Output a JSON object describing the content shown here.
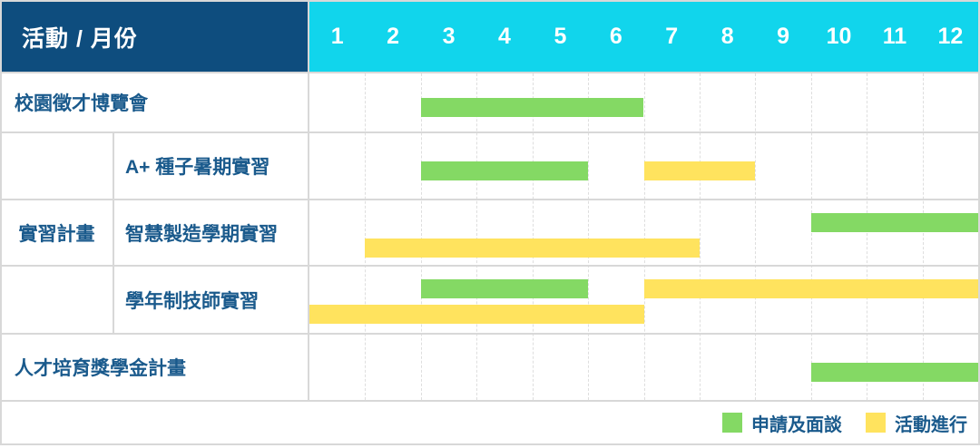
{
  "table": {
    "corner_label": "活動 / 月份",
    "months": [
      "1",
      "2",
      "3",
      "4",
      "5",
      "6",
      "7",
      "8",
      "9",
      "10",
      "11",
      "12"
    ],
    "group_label": "實習計畫",
    "rows": [
      {
        "label": "校園徵才博覽會"
      },
      {
        "label": "A+ 種子暑期實習"
      },
      {
        "label": "智慧製造學期實習"
      },
      {
        "label": "學年制技師實習"
      },
      {
        "label": "人才培育獎學金計畫"
      }
    ]
  },
  "legend": {
    "items": [
      {
        "key": "apply",
        "label": "申請及面談",
        "color": "#84d964"
      },
      {
        "key": "progress",
        "label": "活動進行",
        "color": "#ffe35e"
      }
    ]
  },
  "colors": {
    "header_blue": "#0e4d7e",
    "month_cyan": "#11d5ec",
    "apply_green": "#84d964",
    "progress_yellow": "#ffe35e",
    "label_text": "#1a5a8c",
    "grid_border": "#d8d8d8"
  },
  "chart_data": {
    "type": "gantt",
    "title": "活動 / 月份",
    "x_unit": "month",
    "x_range": [
      1,
      12
    ],
    "x_ticks": [
      "1",
      "2",
      "3",
      "4",
      "5",
      "6",
      "7",
      "8",
      "9",
      "10",
      "11",
      "12"
    ],
    "categories": [
      "校園徵才博覽會",
      "A+ 種子暑期實習",
      "智慧製造學期實習",
      "學年制技師實習",
      "人才培育獎學金計畫"
    ],
    "category_group": {
      "label": "實習計畫",
      "members": [
        "A+ 種子暑期實習",
        "智慧製造學期實習",
        "學年制技師實習"
      ]
    },
    "phases": {
      "apply": "申請及面談",
      "progress": "活動進行"
    },
    "legend_position": "bottom-right",
    "bars": [
      {
        "row": 0,
        "category": "校園徵才博覽會",
        "phase": "apply",
        "start_month": 3,
        "end_month": 6,
        "line": "single"
      },
      {
        "row": 1,
        "category": "A+ 種子暑期實習",
        "phase": "apply",
        "start_month": 3,
        "end_month": 5,
        "line": "single"
      },
      {
        "row": 1,
        "category": "A+ 種子暑期實習",
        "phase": "progress",
        "start_month": 7,
        "end_month": 8,
        "line": "single"
      },
      {
        "row": 2,
        "category": "智慧製造學期實習",
        "phase": "apply",
        "start_month": 10,
        "end_month": 12,
        "line": "top"
      },
      {
        "row": 2,
        "category": "智慧製造學期實習",
        "phase": "progress",
        "start_month": 2,
        "end_month": 7,
        "line": "bottom"
      },
      {
        "row": 3,
        "category": "學年制技師實習",
        "phase": "apply",
        "start_month": 3,
        "end_month": 5,
        "line": "top"
      },
      {
        "row": 3,
        "category": "學年制技師實習",
        "phase": "progress",
        "start_month": 7,
        "end_month": 12,
        "line": "top"
      },
      {
        "row": 3,
        "category": "學年制技師實習",
        "phase": "progress",
        "start_month": 1,
        "end_month": 6,
        "line": "bottom"
      },
      {
        "row": 4,
        "category": "人才培育獎學金計畫",
        "phase": "apply",
        "start_month": 10,
        "end_month": 12,
        "line": "single"
      }
    ]
  }
}
